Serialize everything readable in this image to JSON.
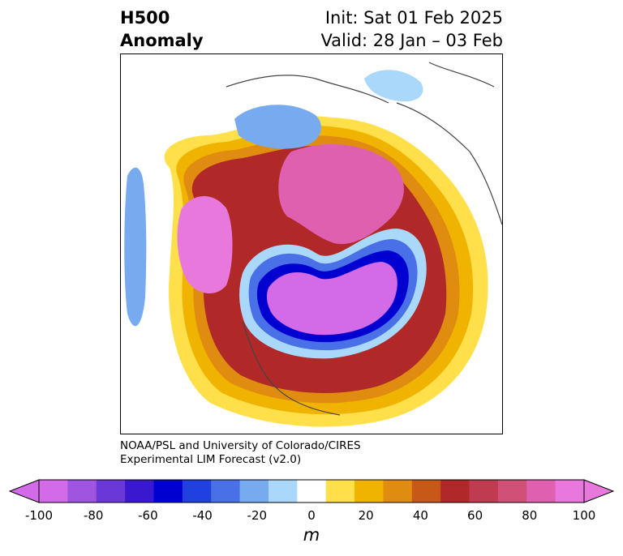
{
  "title": {
    "left_line1": "H500",
    "left_line2": "Anomaly",
    "right_line1": "Init: Sat 01 Feb 2025",
    "right_line2": "Valid: 28 Jan – 03 Feb"
  },
  "credit": {
    "line1": "NOAA/PSL and University of Colorado/CIRES",
    "line2": "Experimental LIM Forecast (v2.0)"
  },
  "colorbar": {
    "units": "m",
    "ticks": [
      "-100",
      "-80",
      "-60",
      "-40",
      "-20",
      "0",
      "20",
      "40",
      "60",
      "80",
      "100"
    ],
    "levels": [
      -100,
      -90,
      -80,
      -70,
      -60,
      -50,
      -40,
      -30,
      -20,
      -10,
      10,
      20,
      30,
      40,
      50,
      60,
      70,
      80,
      90,
      100
    ],
    "colors": [
      "#d36be8",
      "#a055e0",
      "#6a38d8",
      "#3a18d0",
      "#0000d0",
      "#2040e0",
      "#4a70e8",
      "#78aaf0",
      "#aad8fa",
      "#ffffff",
      "#ffe04a",
      "#f0b400",
      "#e08c10",
      "#c85818",
      "#b02828",
      "#c03a50",
      "#d05078",
      "#e060b0",
      "#e878dc"
    ],
    "extend": "both"
  }
}
